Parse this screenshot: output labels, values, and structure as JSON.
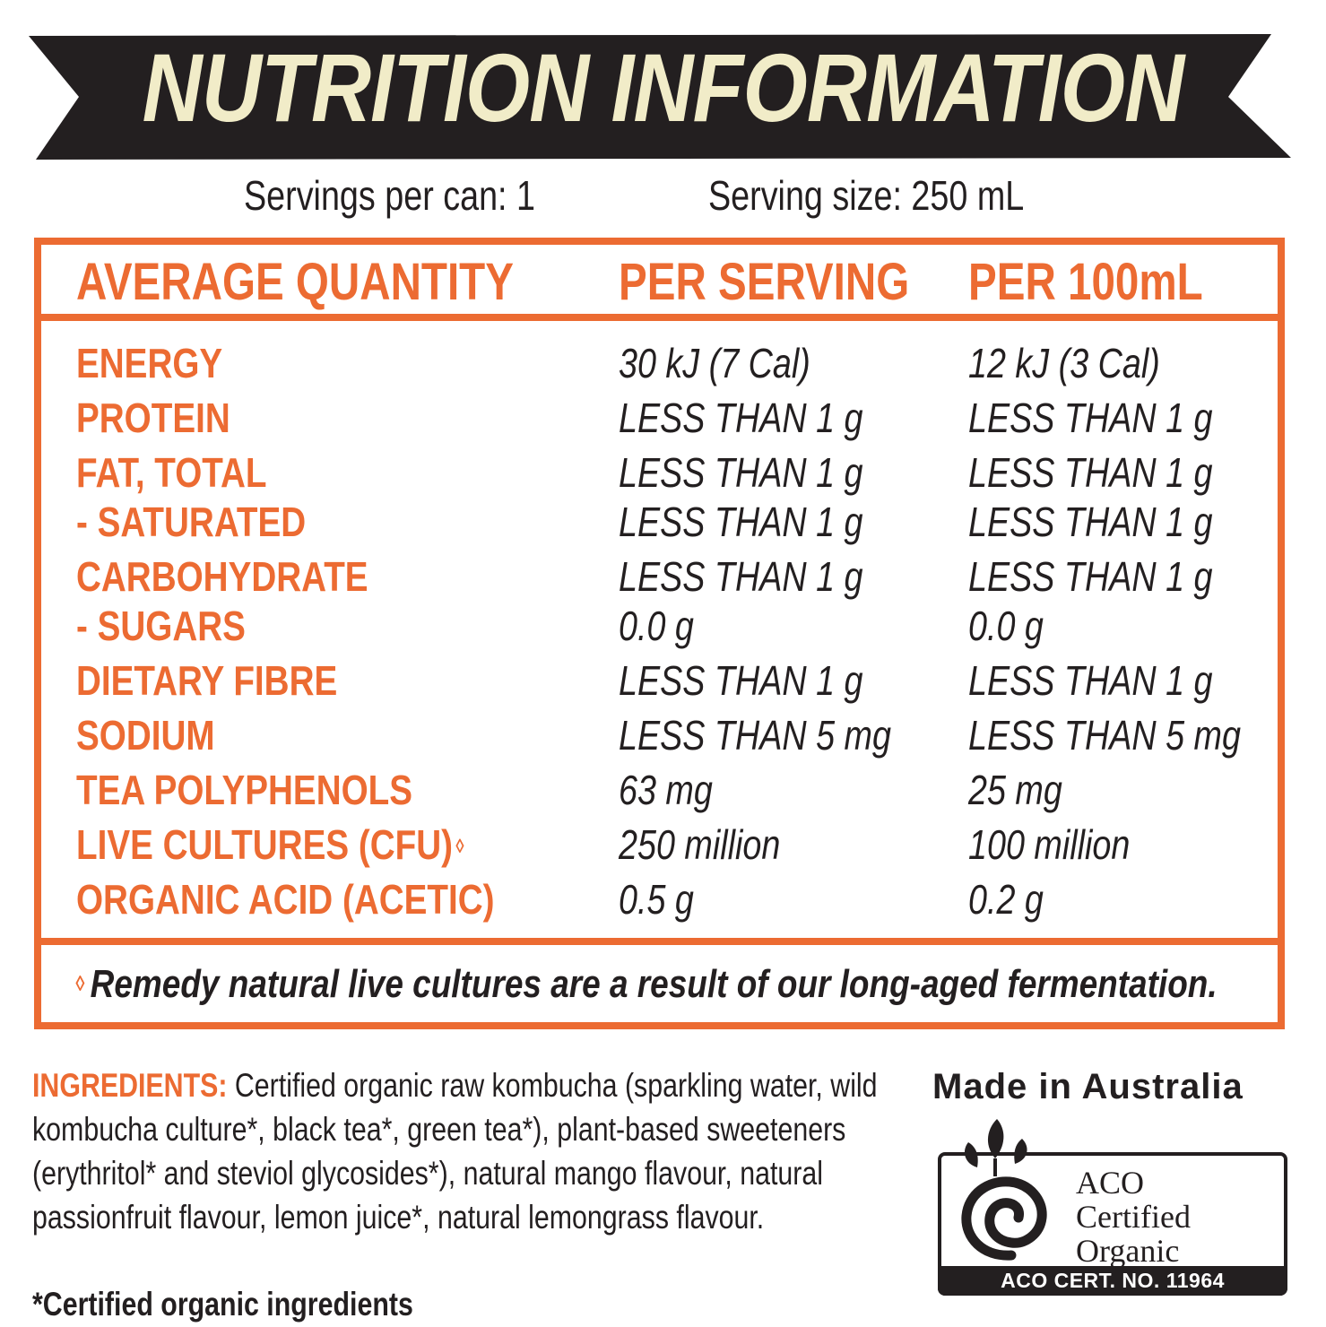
{
  "title": "NUTRITION INFORMATION",
  "servings": {
    "per_can": "Servings per can: 1",
    "size": "Serving size: 250 mL"
  },
  "table": {
    "headers": [
      "AVERAGE QUANTITY",
      "PER SERVING",
      "PER 100mL"
    ],
    "rows": [
      {
        "name": "ENERGY",
        "per_serving": "30 kJ (7 Cal)",
        "per_100ml": "12 kJ (3 Cal)"
      },
      {
        "name": "PROTEIN",
        "per_serving": "LESS THAN 1 g",
        "per_100ml": "LESS THAN 1 g"
      },
      {
        "name": "FAT, TOTAL",
        "per_serving": "LESS THAN 1 g",
        "per_100ml": "LESS THAN 1 g"
      },
      {
        "name": "- SATURATED",
        "per_serving": "LESS THAN 1 g",
        "per_100ml": "LESS THAN 1 g"
      },
      {
        "name": "CARBOHYDRATE",
        "per_serving": "LESS THAN 1 g",
        "per_100ml": "LESS THAN 1 g"
      },
      {
        "name": "- SUGARS",
        "per_serving": "0.0 g",
        "per_100ml": "0.0 g"
      },
      {
        "name": "DIETARY FIBRE",
        "per_serving": "LESS THAN 1 g",
        "per_100ml": "LESS THAN 1 g"
      },
      {
        "name": "SODIUM",
        "per_serving": "LESS THAN 5 mg",
        "per_100ml": "LESS THAN 5 mg"
      },
      {
        "name": "TEA POLYPHENOLS",
        "per_serving": "63 mg",
        "per_100ml": "25 mg"
      },
      {
        "name": "LIVE CULTURES (CFU)",
        "per_serving": "250 million",
        "per_100ml": "100 million"
      },
      {
        "name": "ORGANIC ACID (ACETIC)",
        "per_serving": "0.5 g",
        "per_100ml": "0.2 g"
      }
    ],
    "footnote_mark": "◊",
    "footnote": "Remedy natural live cultures are a result of our long-aged fermentation."
  },
  "ingredients": {
    "label": "INGREDIENTS:",
    "text": " Certified organic raw kombucha (sparkling water, wild kombucha culture*, black tea*, green tea*), plant-based sweeteners (erythritol* and steviol glycosides*), natural mango flavour, natural passionfruit flavour, lemon juice*, natural lemongrass flavour."
  },
  "cert_note": "*Certified organic ingredients",
  "made_in": "Made in Australia",
  "aco_logo": {
    "line1": "ACO",
    "line2": "Certified",
    "line3": "Organic",
    "cert_no": "ACO CERT. NO. 11964"
  },
  "colors": {
    "accent": "#ec6b32",
    "banner": "#231f20",
    "banner_text": "#f1ecc8",
    "text": "#231f20"
  }
}
